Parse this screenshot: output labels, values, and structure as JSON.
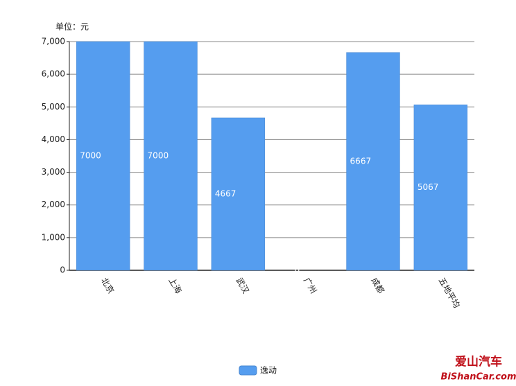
{
  "chart_data": {
    "type": "bar",
    "unit_label": "单位：元",
    "categories": [
      "北京",
      "上海",
      "武汉",
      "广州",
      "成都",
      "五地平均"
    ],
    "series": [
      {
        "name": "逸动",
        "color": "#559def",
        "values": [
          7000,
          7000,
          4667,
          0,
          6667,
          5067
        ]
      }
    ],
    "ylim": [
      0,
      7000
    ],
    "yticks": [
      0,
      {
        "value": 1000,
        "label": "1,000"
      },
      {
        "value": 2000,
        "label": "2,000"
      },
      {
        "value": 3000,
        "label": "3,000"
      },
      {
        "value": 4000,
        "label": "4,000"
      },
      {
        "value": 5000,
        "label": "5,000"
      },
      {
        "value": 6000,
        "label": "6,000"
      },
      {
        "value": 7000,
        "label": "7,000"
      }
    ],
    "grid": true
  },
  "watermark": {
    "title": "爱山汽车",
    "url": "BiShanCar.com"
  }
}
